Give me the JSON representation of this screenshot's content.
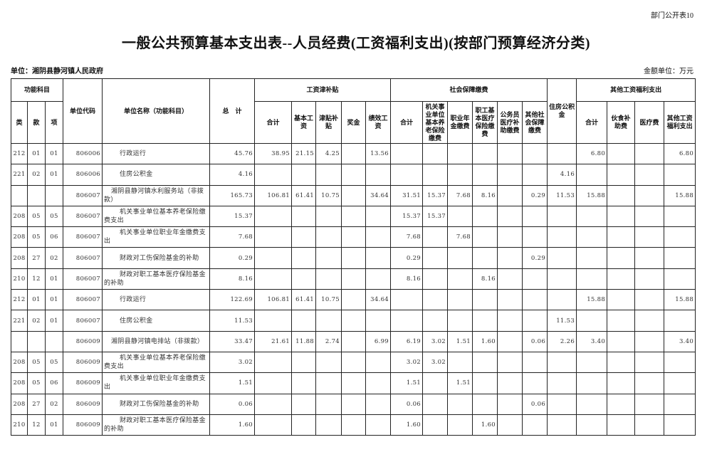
{
  "corner_label": "部门公开表10",
  "title": "一般公共预算基本支出表--人员经费(工资福利支出)(按部门预算经济分类)",
  "unit_label": "单位：湘阴县静河镇人民政府",
  "money_unit": "金额单位：万元",
  "headers": {
    "func_subject": "功能科目",
    "lei": "类",
    "kuan": "款",
    "xiang": "项",
    "unit_code": "单位代码",
    "unit_name": "单位名称（功能科目）",
    "total": "总　计",
    "wage_group": "工资津补贴",
    "wage_sum": "合计",
    "basic_wage": "基本工资",
    "allowance": "津贴补贴",
    "bonus": "奖金",
    "performance": "绩效工资",
    "social_group": "社会保障缴费",
    "social_sum": "合计",
    "pension": "机关事业单位基本养老保险缴费",
    "annuity": "职业年金缴费",
    "medical_ins": "职工基本医疗保险缴费",
    "civil_medical": "公务员医疗补助缴费",
    "other_social": "其他社会保障缴费",
    "housing_fund": "住房公积金",
    "other_group": "其他工资福利支出",
    "other_sum": "合计",
    "meal": "伙食补助费",
    "medical_fee": "医疗费",
    "other_welfare": "其他工资福利支出"
  },
  "rows": [
    {
      "type": "item",
      "cells": [
        "212",
        "01",
        "01",
        "806006",
        "行政运行",
        "45.76",
        "38.95",
        "21.15",
        "4.25",
        "",
        "13.56",
        "",
        "",
        "",
        "",
        "",
        "",
        "",
        "6.80",
        "",
        "",
        "6.80"
      ]
    },
    {
      "type": "item",
      "cells": [
        "221",
        "02",
        "01",
        "806006",
        "住房公积金",
        "4.16",
        "",
        "",
        "",
        "",
        "",
        "",
        "",
        "",
        "",
        "",
        "",
        "4.16",
        "",
        "",
        "",
        ""
      ]
    },
    {
      "type": "unit",
      "cells": [
        "",
        "",
        "",
        "806007",
        "湘阴县静河镇水利服务站（非拨款）",
        "165.73",
        "106.81",
        "61.41",
        "10.75",
        "",
        "34.64",
        "31.51",
        "15.37",
        "7.68",
        "8.16",
        "",
        "0.29",
        "11.53",
        "15.88",
        "",
        "",
        "15.88"
      ]
    },
    {
      "type": "item",
      "cells": [
        "208",
        "05",
        "05",
        "806007",
        "机关事业单位基本养老保险缴费支出",
        "15.37",
        "",
        "",
        "",
        "",
        "",
        "15.37",
        "15.37",
        "",
        "",
        "",
        "",
        "",
        "",
        "",
        "",
        ""
      ]
    },
    {
      "type": "item",
      "cells": [
        "208",
        "05",
        "06",
        "806007",
        "机关事业单位职业年金缴费支出",
        "7.68",
        "",
        "",
        "",
        "",
        "",
        "7.68",
        "",
        "7.68",
        "",
        "",
        "",
        "",
        "",
        "",
        "",
        ""
      ]
    },
    {
      "type": "item",
      "cells": [
        "208",
        "27",
        "02",
        "806007",
        "财政对工伤保险基金的补助",
        "0.29",
        "",
        "",
        "",
        "",
        "",
        "0.29",
        "",
        "",
        "",
        "",
        "0.29",
        "",
        "",
        "",
        "",
        ""
      ]
    },
    {
      "type": "item",
      "cells": [
        "210",
        "12",
        "01",
        "806007",
        "财政对职工基本医疗保险基金的补助",
        "8.16",
        "",
        "",
        "",
        "",
        "",
        "8.16",
        "",
        "",
        "8.16",
        "",
        "",
        "",
        "",
        "",
        "",
        ""
      ]
    },
    {
      "type": "item",
      "cells": [
        "212",
        "01",
        "01",
        "806007",
        "行政运行",
        "122.69",
        "106.81",
        "61.41",
        "10.75",
        "",
        "34.64",
        "",
        "",
        "",
        "",
        "",
        "",
        "",
        "15.88",
        "",
        "",
        "15.88"
      ]
    },
    {
      "type": "item",
      "cells": [
        "221",
        "02",
        "01",
        "806007",
        "住房公积金",
        "11.53",
        "",
        "",
        "",
        "",
        "",
        "",
        "",
        "",
        "",
        "",
        "",
        "11.53",
        "",
        "",
        "",
        ""
      ]
    },
    {
      "type": "unit",
      "cells": [
        "",
        "",
        "",
        "806009",
        "湘阴县静河镇电排站（非拨款）",
        "33.47",
        "21.61",
        "11.88",
        "2.74",
        "",
        "6.99",
        "6.19",
        "3.02",
        "1.51",
        "1.60",
        "",
        "0.06",
        "2.26",
        "3.40",
        "",
        "",
        "3.40"
      ]
    },
    {
      "type": "item",
      "cells": [
        "208",
        "05",
        "05",
        "806009",
        "机关事业单位基本养老保险缴费支出",
        "3.02",
        "",
        "",
        "",
        "",
        "",
        "3.02",
        "3.02",
        "",
        "",
        "",
        "",
        "",
        "",
        "",
        "",
        ""
      ]
    },
    {
      "type": "item",
      "cells": [
        "208",
        "05",
        "06",
        "806009",
        "机关事业单位职业年金缴费支出",
        "1.51",
        "",
        "",
        "",
        "",
        "",
        "1.51",
        "",
        "1.51",
        "",
        "",
        "",
        "",
        "",
        "",
        "",
        ""
      ]
    },
    {
      "type": "item",
      "cells": [
        "208",
        "27",
        "02",
        "806009",
        "财政对工伤保险基金的补助",
        "0.06",
        "",
        "",
        "",
        "",
        "",
        "0.06",
        "",
        "",
        "",
        "",
        "0.06",
        "",
        "",
        "",
        "",
        ""
      ]
    },
    {
      "type": "item",
      "cells": [
        "210",
        "12",
        "01",
        "806009",
        "财政对职工基本医疗保险基金的补助",
        "1.60",
        "",
        "",
        "",
        "",
        "",
        "1.60",
        "",
        "",
        "1.60",
        "",
        "",
        "",
        "",
        "",
        "",
        ""
      ]
    }
  ]
}
